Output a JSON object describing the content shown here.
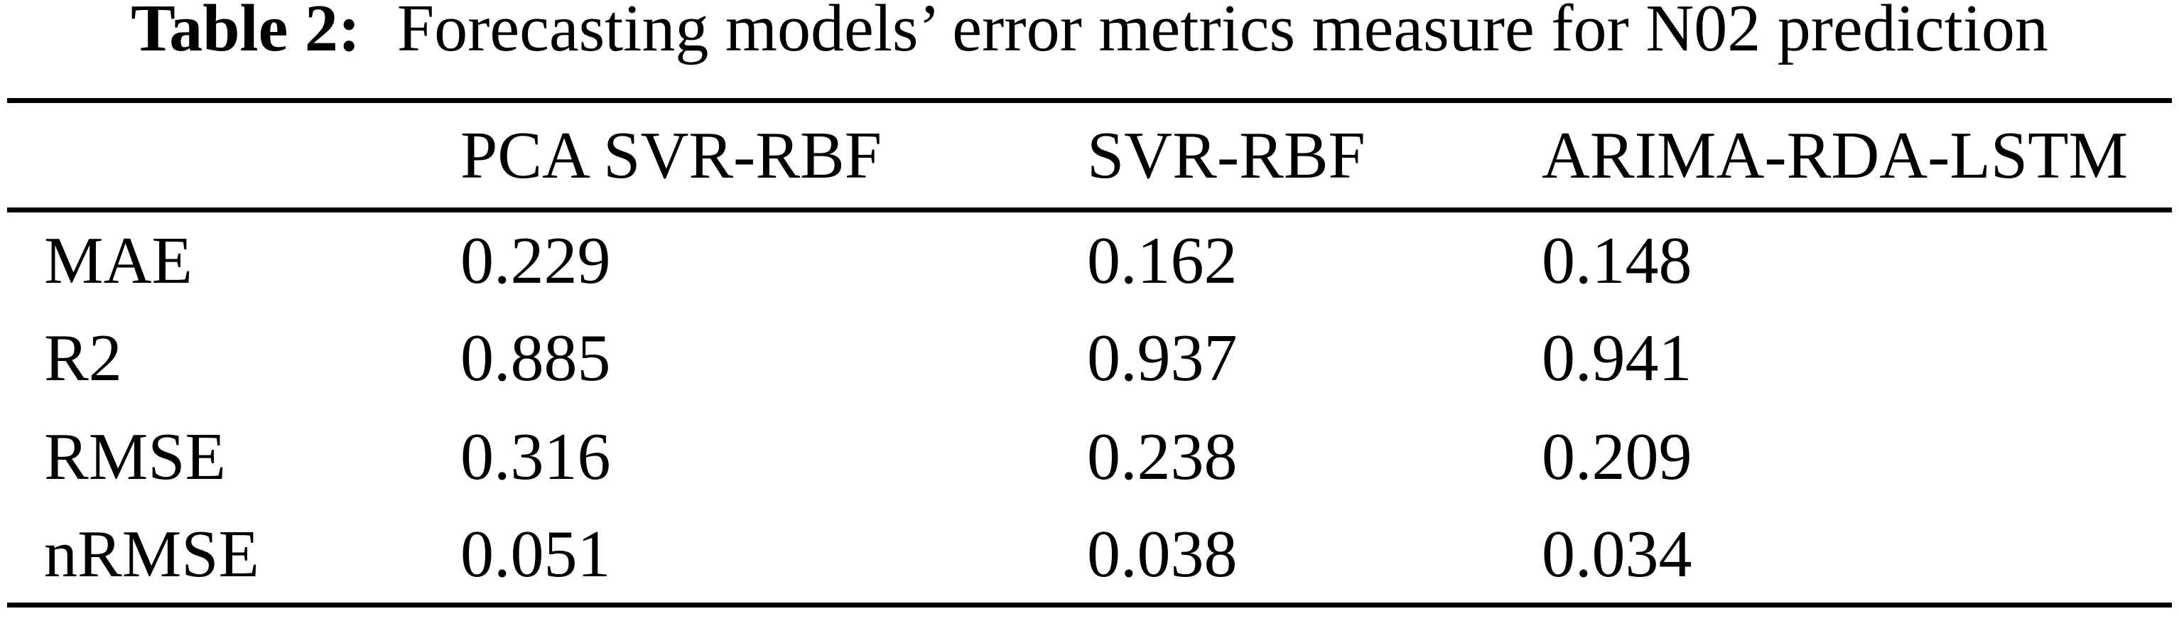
{
  "colors": {
    "background": "#ffffff",
    "text": "#000000",
    "rule": "#000000"
  },
  "caption": {
    "label": "Table 2:",
    "text": "Forecasting models’ error metrics measure for N02 prediction"
  },
  "table": {
    "columns": [
      "",
      "PCA SVR-RBF",
      "SVR-RBF",
      "ARIMA-RDA-LSTM"
    ],
    "rows": [
      {
        "metric": "MAE",
        "values": [
          "0.229",
          "0.162",
          "0.148"
        ]
      },
      {
        "metric": "R2",
        "values": [
          "0.885",
          "0.937",
          "0.941"
        ]
      },
      {
        "metric": "RMSE",
        "values": [
          "0.316",
          "0.238",
          "0.209"
        ]
      },
      {
        "metric": "nRMSE",
        "values": [
          "0.051",
          "0.038",
          "0.034"
        ]
      }
    ]
  }
}
